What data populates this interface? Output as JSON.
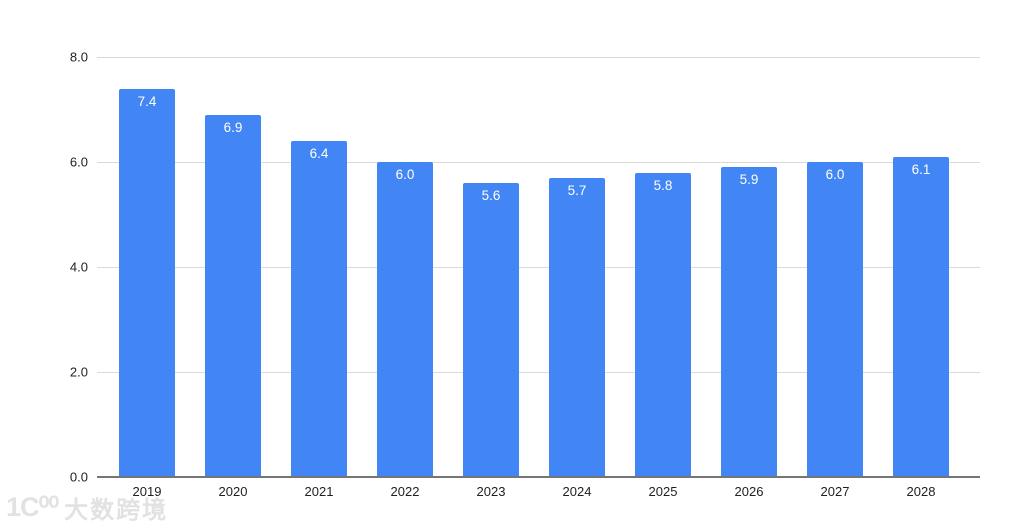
{
  "colors": {
    "bar": "#4285f4",
    "bar_label_text": "#ffffff",
    "gridline": "#d9d9d9",
    "axis_line": "#757575",
    "tick_label_text": "#1f1f1f",
    "watermark": "#e2e2e2",
    "background": "#ffffff"
  },
  "watermark": {
    "logo": "1Ϲ⁰⁰",
    "text": "大数跨境"
  },
  "chart_data": {
    "type": "bar",
    "title": "",
    "xlabel": "",
    "ylabel": "",
    "categories": [
      "2019",
      "2020",
      "2021",
      "2022",
      "2023",
      "2024",
      "2025",
      "2026",
      "2027",
      "2028"
    ],
    "values": [
      7.4,
      6.9,
      6.4,
      6.0,
      5.6,
      5.7,
      5.8,
      5.9,
      6.0,
      6.1
    ],
    "value_labels": [
      "7.4",
      "6.9",
      "6.4",
      "6.0",
      "5.6",
      "5.7",
      "5.8",
      "5.9",
      "6.0",
      "6.1"
    ],
    "y_ticks": [
      0.0,
      2.0,
      4.0,
      6.0,
      8.0
    ],
    "y_tick_labels": [
      "0.0",
      "2.0",
      "4.0",
      "6.0",
      "8.0"
    ],
    "ylim": [
      0,
      8
    ],
    "grid": true,
    "legend": "none",
    "data_label_position": "inside-top"
  }
}
